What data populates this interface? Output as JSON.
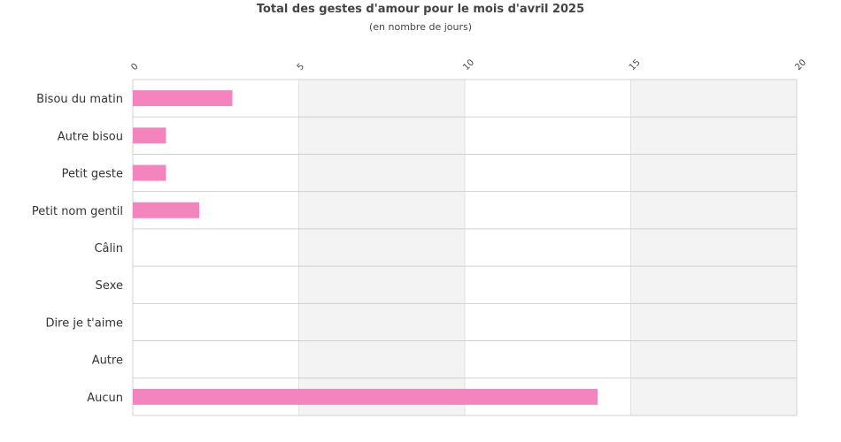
{
  "chart_data": {
    "type": "bar",
    "orientation": "horizontal",
    "title": "Total des gestes d'amour pour le mois d'avril 2025",
    "subtitle": "(en nombre de jours)",
    "categories": [
      "Bisou du matin",
      "Autre bisou",
      "Petit geste",
      "Petit nom gentil",
      "Câlin",
      "Sexe",
      "Dire je t'aime",
      "Autre",
      "Aucun"
    ],
    "values": [
      3,
      1,
      1,
      2,
      0,
      0,
      0,
      0,
      14
    ],
    "xlim": [
      0,
      20
    ],
    "xticks": [
      "0",
      "5",
      "10",
      "15",
      "20"
    ],
    "xaxis_position": "top",
    "grid": true,
    "legend": "none",
    "colors": {
      "bar": "#f384be",
      "band_alt": "#f3f3f3",
      "grid": "#d0d0d0"
    }
  }
}
